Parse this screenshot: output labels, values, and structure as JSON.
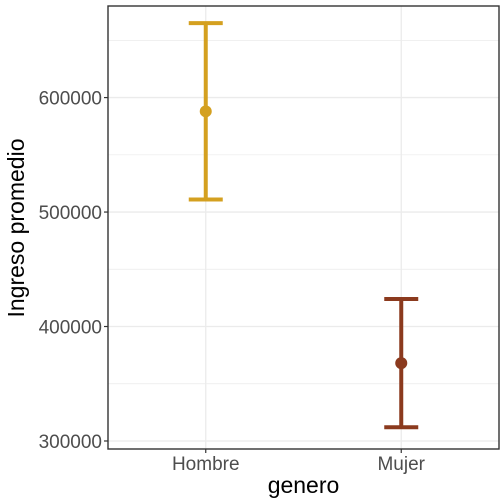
{
  "chart_data": {
    "type": "errorbar",
    "xlabel": "genero",
    "ylabel": "Ingreso promedio",
    "categories": [
      "Hombre",
      "Mujer"
    ],
    "points": [
      {
        "category": "Hombre",
        "mean": 588000,
        "lower": 511000,
        "upper": 665000,
        "color": "#D4A020"
      },
      {
        "category": "Mujer",
        "mean": 368000,
        "lower": 312000,
        "upper": 424000,
        "color": "#8B3A1E"
      }
    ],
    "ylim": [
      293000,
      680000
    ],
    "yticks": [
      300000,
      400000,
      500000,
      600000
    ],
    "ytick_labels": [
      "300000",
      "400000",
      "500000",
      "600000"
    ],
    "grid": true,
    "legend": "none"
  }
}
